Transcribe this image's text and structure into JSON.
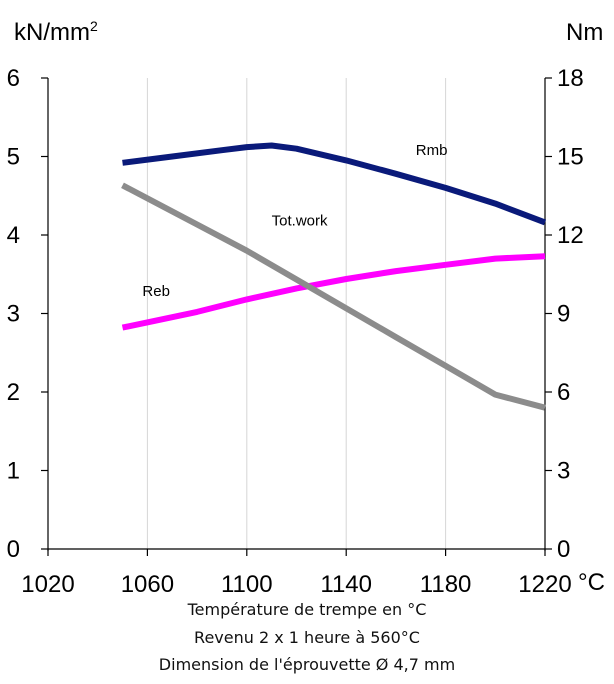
{
  "chart_data": {
    "type": "line",
    "y_left_unit": "kN/mm",
    "y_left_unit_sup": "2",
    "y_right_unit": "Nm",
    "x_unit": "°C",
    "x_ticks": [
      1020,
      1060,
      1100,
      1140,
      1180,
      1220
    ],
    "x_range": [
      1020,
      1220
    ],
    "y_left_ticks": [
      0,
      1,
      2,
      3,
      4,
      5,
      6
    ],
    "y_left_range": [
      0,
      6
    ],
    "y_right_ticks": [
      0,
      3,
      6,
      9,
      12,
      15,
      18
    ],
    "y_right_range": [
      0,
      18
    ],
    "grid": "vertical",
    "series": [
      {
        "name": "Rmb",
        "axis": "left",
        "color": "#0a1a7a",
        "x": [
          1050,
          1070,
          1090,
          1100,
          1110,
          1120,
          1140,
          1160,
          1180,
          1200,
          1220
        ],
        "y": [
          4.92,
          5.0,
          5.08,
          5.12,
          5.14,
          5.1,
          4.95,
          4.78,
          4.6,
          4.4,
          4.16
        ]
      },
      {
        "name": "Reb",
        "axis": "left",
        "color": "#ff00ff",
        "x": [
          1050,
          1080,
          1100,
          1120,
          1140,
          1160,
          1180,
          1200,
          1220
        ],
        "y": [
          2.82,
          3.02,
          3.18,
          3.32,
          3.44,
          3.54,
          3.62,
          3.7,
          3.73
        ]
      },
      {
        "name": "Tot.work",
        "axis": "right",
        "color": "#8c8c8c",
        "x": [
          1050,
          1080,
          1100,
          1120,
          1140,
          1160,
          1180,
          1200,
          1220
        ],
        "y": [
          13.9,
          12.4,
          11.4,
          10.3,
          9.2,
          8.1,
          7.0,
          5.9,
          5.4
        ]
      }
    ],
    "annotations": [
      {
        "text": "Rmb",
        "x": 1168,
        "y": 5.02,
        "axis": "left"
      },
      {
        "text": "Tot.work",
        "x": 1110,
        "y": 4.12,
        "axis": "left"
      },
      {
        "text": "Reb",
        "x": 1058,
        "y": 3.22,
        "axis": "left"
      }
    ]
  },
  "caption": {
    "line1": "Température de trempe en °C",
    "line2": "Revenu 2 x 1 heure à 560°C",
    "line3": "Dimension de l'éprouvette Ø 4,7 mm"
  }
}
